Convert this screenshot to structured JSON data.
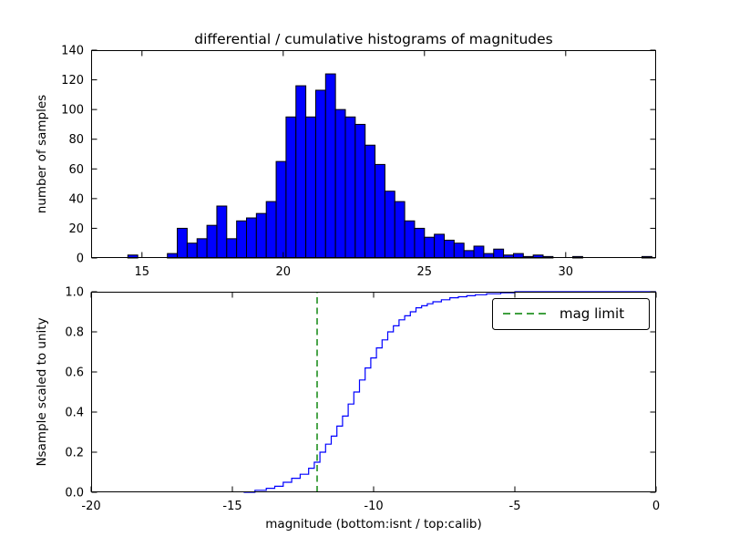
{
  "figure": {
    "title": "differential / cumulative histograms of magnitudes",
    "xlabel": "magnitude (bottom:isnt / top:calib)"
  },
  "chart_data": [
    {
      "type": "bar",
      "role": "differential-histogram",
      "ylabel": "number of samples",
      "xlim": [
        13.2,
        33.2
      ],
      "ylim": [
        0,
        140
      ],
      "grid": false,
      "bar_color": "#0000ff",
      "bar_edge_color": "#000000",
      "bin_start": 14.5,
      "bin_width": 0.35,
      "counts": [
        2,
        0,
        0,
        0,
        3,
        20,
        10,
        13,
        22,
        35,
        13,
        25,
        27,
        30,
        38,
        65,
        95,
        116,
        95,
        113,
        124,
        100,
        95,
        90,
        76,
        63,
        45,
        38,
        25,
        20,
        14,
        16,
        12,
        10,
        5,
        8,
        3,
        6,
        2,
        3,
        1,
        2,
        1,
        0,
        0,
        1,
        0,
        0,
        0,
        0,
        0,
        0,
        1
      ],
      "xticks": [
        {
          "v": 15,
          "label": "15"
        },
        {
          "v": 20,
          "label": "20"
        },
        {
          "v": 25,
          "label": "25"
        },
        {
          "v": 30,
          "label": "30"
        }
      ],
      "yticks": [
        {
          "v": 0,
          "label": "0"
        },
        {
          "v": 20,
          "label": "20"
        },
        {
          "v": 40,
          "label": "40"
        },
        {
          "v": 60,
          "label": "60"
        },
        {
          "v": 80,
          "label": "80"
        },
        {
          "v": 100,
          "label": "100"
        },
        {
          "v": 120,
          "label": "120"
        },
        {
          "v": 140,
          "label": "140"
        }
      ]
    },
    {
      "type": "line",
      "role": "cumulative-histogram",
      "ylabel": "Nsample scaled to unity",
      "xlim": [
        -20,
        0
      ],
      "ylim": [
        0,
        1
      ],
      "grid": false,
      "step": true,
      "line_color": "#0000ff",
      "x": [
        -14.6,
        -14.2,
        -13.8,
        -13.5,
        -13.2,
        -12.9,
        -12.6,
        -12.3,
        -12.1,
        -11.9,
        -11.7,
        -11.5,
        -11.3,
        -11.1,
        -10.9,
        -10.7,
        -10.5,
        -10.3,
        -10.1,
        -9.9,
        -9.7,
        -9.5,
        -9.3,
        -9.1,
        -8.9,
        -8.7,
        -8.5,
        -8.3,
        -8.1,
        -7.9,
        -7.6,
        -7.3,
        -7.0,
        -6.7,
        -6.4,
        -6.0,
        -5.5,
        -5.0,
        0
      ],
      "y": [
        0,
        0.01,
        0.02,
        0.03,
        0.05,
        0.07,
        0.09,
        0.12,
        0.15,
        0.2,
        0.24,
        0.28,
        0.33,
        0.38,
        0.44,
        0.5,
        0.56,
        0.62,
        0.67,
        0.72,
        0.76,
        0.8,
        0.83,
        0.86,
        0.88,
        0.9,
        0.92,
        0.93,
        0.94,
        0.95,
        0.96,
        0.97,
        0.975,
        0.98,
        0.985,
        0.99,
        0.995,
        1.0,
        1.0
      ],
      "vline": {
        "x": -12.0,
        "color": "#008000",
        "style": "dashed"
      },
      "legend": {
        "label": "mag limit",
        "position": "upper right",
        "line_color": "#008000",
        "dashed": true
      },
      "xticks": [
        {
          "v": -20,
          "label": "-20"
        },
        {
          "v": -15,
          "label": "-15"
        },
        {
          "v": -10,
          "label": "-10"
        },
        {
          "v": -5,
          "label": "-5"
        },
        {
          "v": 0,
          "label": "0"
        }
      ],
      "yticks": [
        {
          "v": 0,
          "label": "0.0"
        },
        {
          "v": 0.2,
          "label": "0.2"
        },
        {
          "v": 0.4,
          "label": "0.4"
        },
        {
          "v": 0.6,
          "label": "0.6"
        },
        {
          "v": 0.8,
          "label": "0.8"
        },
        {
          "v": 1.0,
          "label": "1.0"
        }
      ]
    }
  ]
}
